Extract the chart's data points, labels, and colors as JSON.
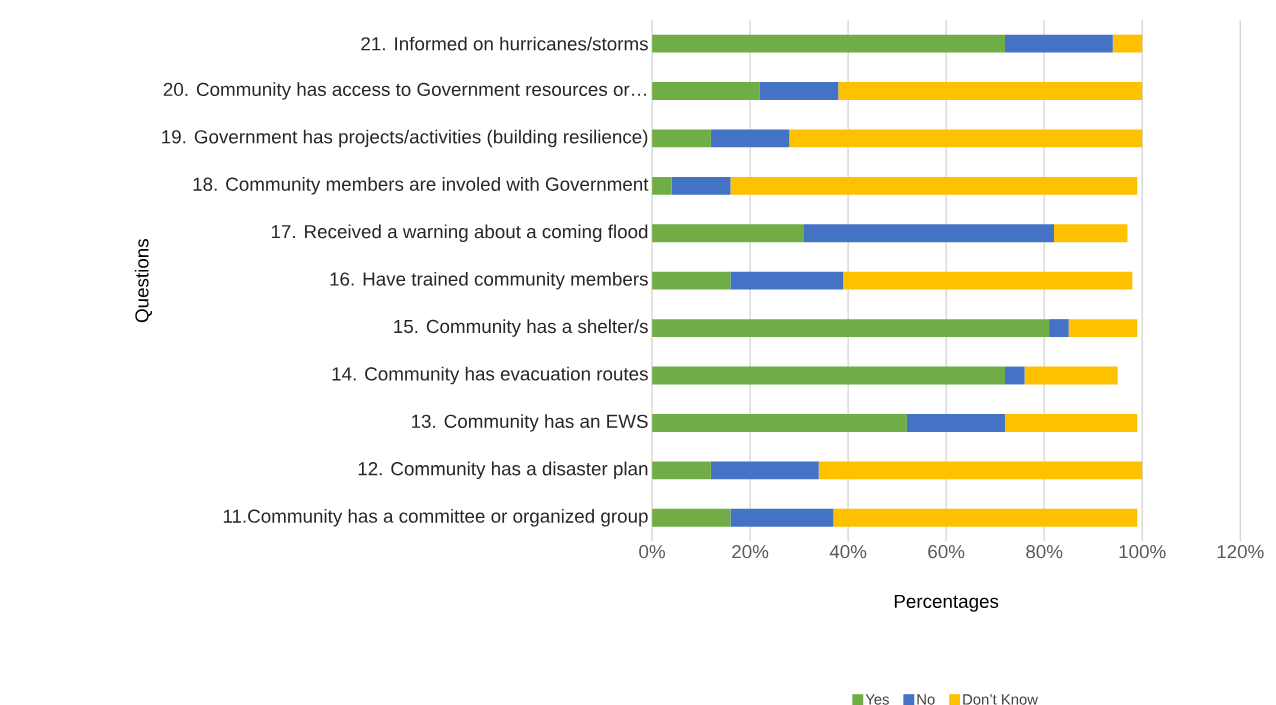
{
  "chart_data": {
    "type": "bar",
    "orientation": "horizontal",
    "stacked": true,
    "xlabel": "Percentages",
    "ylabel": "Questions",
    "categories": [
      "21. Informed on hurricanes/storms",
      "20. Community has access to Government resources or…",
      "19. Government has projects/activities (building resilience)",
      "18. Community members are involed with Government",
      "17. Received a warning about a coming flood",
      "16. Have trained community members",
      "15. Community has a shelter/s",
      "14. Community has evacuation routes",
      "13. Community has an EWS",
      "12. Community has a disaster plan",
      "11.Community has a committee or organized group"
    ],
    "series": [
      {
        "name": "Yes",
        "color": "#70ad47",
        "values": [
          72,
          22,
          12,
          4,
          31,
          16,
          81,
          72,
          52,
          12,
          16
        ]
      },
      {
        "name": "No",
        "color": "#4472c4",
        "values": [
          22,
          16,
          16,
          12,
          51,
          23,
          4,
          4,
          20,
          22,
          21
        ]
      },
      {
        "name": "Don’t Know",
        "color": "#ffc000",
        "values": [
          6,
          62,
          72,
          83,
          15,
          59,
          14,
          19,
          27,
          66,
          62
        ]
      }
    ],
    "xlim": [
      0,
      120
    ],
    "xticks": [
      {
        "value": 0,
        "label": "0%"
      },
      {
        "value": 20,
        "label": "20%"
      },
      {
        "value": 40,
        "label": "40%"
      },
      {
        "value": 60,
        "label": "60%"
      },
      {
        "value": 80,
        "label": "80%"
      },
      {
        "value": 100,
        "label": "100%"
      },
      {
        "value": 120,
        "label": "120%"
      }
    ],
    "grid": "x",
    "legend": "bottom"
  }
}
